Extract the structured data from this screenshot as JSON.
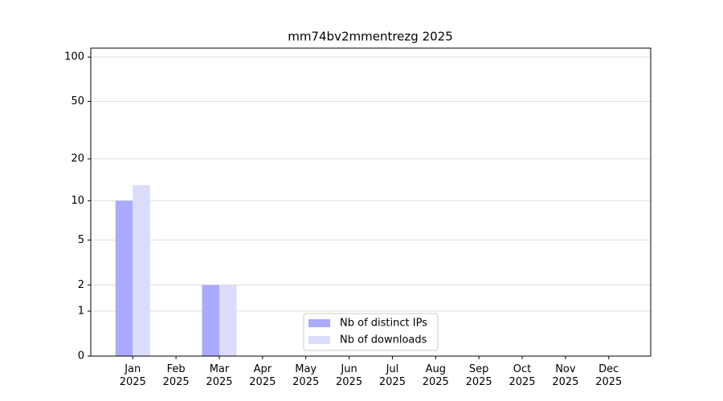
{
  "chart_data": {
    "type": "bar",
    "title": "mm74bv2mmentrezg 2025",
    "categories": [
      "Jan\n2025",
      "Feb\n2025",
      "Mar\n2025",
      "Apr\n2025",
      "May\n2025",
      "Jun\n2025",
      "Jul\n2025",
      "Aug\n2025",
      "Sep\n2025",
      "Oct\n2025",
      "Nov\n2025",
      "Dec\n2025"
    ],
    "series": [
      {
        "name": "Nb of distinct IPs",
        "color": "#aaaaff",
        "values": [
          10,
          0,
          2,
          0,
          0,
          0,
          0,
          0,
          0,
          0,
          0,
          0
        ]
      },
      {
        "name": "Nb of downloads",
        "color": "#dcdcfb",
        "values": [
          13,
          0,
          2,
          0,
          0,
          0,
          0,
          0,
          0,
          0,
          0,
          0
        ]
      }
    ],
    "yscale": "log1p",
    "ylim": [
      0,
      115
    ],
    "yticks": [
      0,
      1,
      2,
      5,
      10,
      20,
      50,
      100
    ],
    "grid": true,
    "legend": "lower center"
  }
}
